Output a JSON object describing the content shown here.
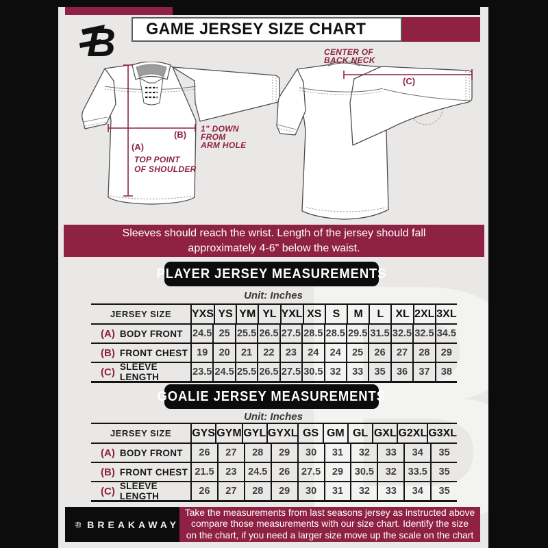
{
  "header": {
    "title": "GAME JERSEY SIZE CHART",
    "logo_letter": "B"
  },
  "diagram": {
    "annotations": {
      "a_label": "(A)",
      "a_line1": "TOP POINT",
      "a_line2": "OF SHOULDER",
      "b_label": "(B)",
      "b_line1": "1\" DOWN",
      "b_line2": "FROM",
      "b_line3": "ARM HOLE",
      "c_label": "(C)",
      "c_line1": "CENTER OF",
      "c_line2": "BACK NECK"
    }
  },
  "notice": {
    "line1": "Sleeves should reach the wrist. Length of the jersey should fall",
    "line2": "approximately 4-6\" below the waist."
  },
  "player_section": {
    "title": "PLAYER JERSEY MEASUREMENTS",
    "unit_label": "Unit: Inches",
    "table": {
      "header_label": "JERSEY SIZE",
      "sizes": [
        "YXS",
        "YS",
        "YM",
        "YL",
        "YXL",
        "XS",
        "S",
        "M",
        "L",
        "XL",
        "2XL",
        "3XL"
      ],
      "rows": [
        {
          "key": "(A)",
          "label": "BODY FRONT",
          "values": [
            "24.5",
            "25",
            "25.5",
            "26.5",
            "27.5",
            "28.5",
            "28.5",
            "29.5",
            "31.5",
            "32.5",
            "32.5",
            "34.5"
          ]
        },
        {
          "key": "(B)",
          "label": "FRONT CHEST",
          "values": [
            "19",
            "20",
            "21",
            "22",
            "23",
            "24",
            "24",
            "25",
            "26",
            "27",
            "28",
            "29"
          ]
        },
        {
          "key": "(C)",
          "label": "SLEEVE LENGTH",
          "values": [
            "23.5",
            "24.5",
            "25.5",
            "26.5",
            "27.5",
            "30.5",
            "32",
            "33",
            "35",
            "36",
            "37",
            "38"
          ]
        }
      ]
    }
  },
  "goalie_section": {
    "title": "GOALIE JERSEY MEASUREMENTS",
    "unit_label": "Unit: Inches",
    "table": {
      "header_label": "JERSEY SIZE",
      "sizes": [
        "GYS",
        "GYM",
        "GYL",
        "GYXL",
        "GS",
        "GM",
        "GL",
        "GXL",
        "G2XL",
        "G3XL"
      ],
      "rows": [
        {
          "key": "(A)",
          "label": "BODY FRONT",
          "values": [
            "26",
            "27",
            "28",
            "29",
            "30",
            "31",
            "32",
            "33",
            "34",
            "35"
          ]
        },
        {
          "key": "(B)",
          "label": "FRONT CHEST",
          "values": [
            "21.5",
            "23",
            "24.5",
            "26",
            "27.5",
            "29",
            "30.5",
            "32",
            "33.5",
            "35"
          ]
        },
        {
          "key": "(C)",
          "label": "SLEEVE LENGTH",
          "values": [
            "26",
            "27",
            "28",
            "29",
            "30",
            "31",
            "32",
            "33",
            "34",
            "35"
          ]
        }
      ]
    }
  },
  "footer": {
    "brand": "BREAKAWAY",
    "logo_letter": "B",
    "note_line1": "Take the measurements from last seasons jersey as instructed above",
    "note_line2": "compare those measurements with our size chart. Identify the size",
    "note_line3": "on the chart, if you need a larger size move up the scale on the chart"
  },
  "colors": {
    "maroon": "#8e2144",
    "black": "#0c0c0c",
    "background_gray": "#e9e8e6",
    "collar_gray": "#9c9c9c",
    "white": "#ffffff"
  }
}
